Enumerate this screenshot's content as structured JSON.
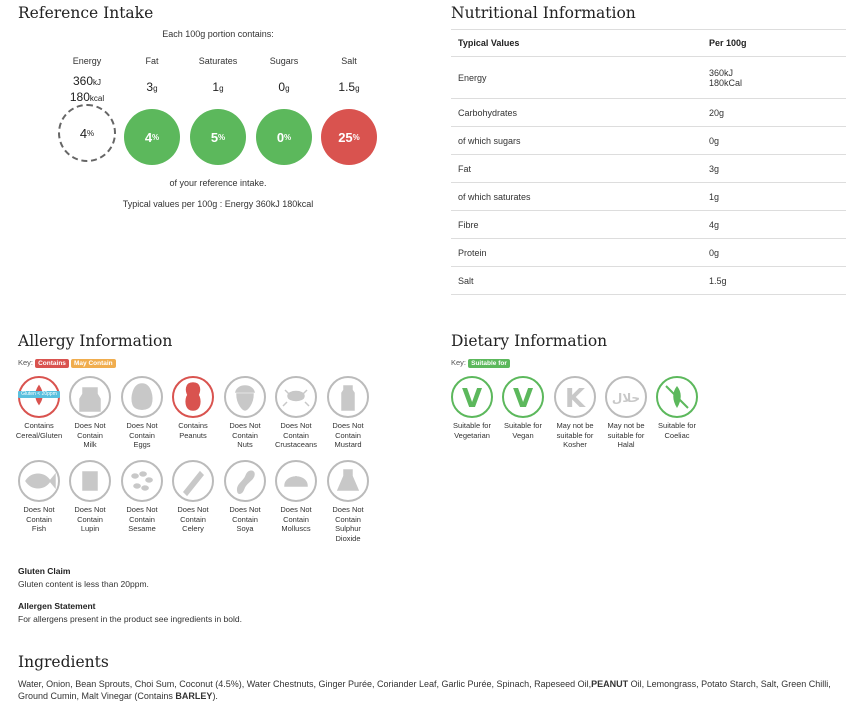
{
  "reference_intake": {
    "title": "Reference Intake",
    "portion_text": "Each 100g portion contains:",
    "columns": [
      {
        "name": "Energy",
        "amount_line1": "360",
        "unit_line1": "kJ",
        "amount_line2": "180",
        "unit_line2": "kcal",
        "percent": "4",
        "percent_unit": "%",
        "color": "#ffffff"
      },
      {
        "name": "Fat",
        "amount_line1": "3",
        "unit_line1": "g",
        "percent": "4",
        "percent_unit": "%",
        "color": "#5cb85c"
      },
      {
        "name": "Saturates",
        "amount_line1": "1",
        "unit_line1": "g",
        "percent": "5",
        "percent_unit": "%",
        "color": "#5cb85c"
      },
      {
        "name": "Sugars",
        "amount_line1": "0",
        "unit_line1": "g",
        "percent": "0",
        "percent_unit": "%",
        "color": "#5cb85c"
      },
      {
        "name": "Salt",
        "amount_line1": "1.5",
        "unit_line1": "g",
        "percent": "25",
        "percent_unit": "%",
        "color": "#d9534f"
      }
    ],
    "footer1": "of your reference intake.",
    "footer2": "Typical values per 100g : Energy 360kJ 180kcal"
  },
  "nutrition": {
    "title": "Nutritional Information",
    "headers": [
      "Typical Values",
      "Per 100g"
    ],
    "rows": [
      {
        "label": "Energy",
        "value": "360kJ",
        "value2": "180kCal"
      },
      {
        "label": "Carbohydrates",
        "value": "20g"
      },
      {
        "label": "of which sugars",
        "value": "0g"
      },
      {
        "label": "Fat",
        "value": "3g"
      },
      {
        "label": "of which saturates",
        "value": "1g"
      },
      {
        "label": "Fibre",
        "value": "4g"
      },
      {
        "label": "Protein",
        "value": "0g"
      },
      {
        "label": "Salt",
        "value": "1.5g"
      }
    ]
  },
  "allergy": {
    "title": "Allergy Information",
    "key_label": "Key:",
    "key_contains": "Contains",
    "key_may_contain": "May Contain",
    "gluten_tag": "Gluten < 20ppm",
    "items": [
      {
        "l1": "Contains",
        "l2": "Cereal/Gluten",
        "icon": "wheat-icon",
        "state": "contains"
      },
      {
        "l1": "Does Not",
        "l2": "Contain",
        "l3": "Milk",
        "icon": "milk-icon",
        "state": "none"
      },
      {
        "l1": "Does Not",
        "l2": "Contain",
        "l3": "Eggs",
        "icon": "egg-icon",
        "state": "none"
      },
      {
        "l1": "Contains",
        "l2": "Peanuts",
        "icon": "peanut-icon",
        "state": "contains"
      },
      {
        "l1": "Does Not",
        "l2": "Contain",
        "l3": "Nuts",
        "icon": "nut-icon",
        "state": "none"
      },
      {
        "l1": "Does Not",
        "l2": "Contain",
        "l3": "Crustaceans",
        "icon": "crab-icon",
        "state": "none"
      },
      {
        "l1": "Does Not",
        "l2": "Contain",
        "l3": "Mustard",
        "icon": "mustard-icon",
        "state": "none"
      },
      {
        "l1": "Does Not",
        "l2": "Contain",
        "l3": "Fish",
        "icon": "fish-icon",
        "state": "none"
      },
      {
        "l1": "Does Not",
        "l2": "Contain",
        "l3": "Lupin",
        "icon": "lupin-icon",
        "state": "none"
      },
      {
        "l1": "Does Not",
        "l2": "Contain",
        "l3": "Sesame",
        "icon": "sesame-icon",
        "state": "none"
      },
      {
        "l1": "Does Not",
        "l2": "Contain",
        "l3": "Celery",
        "icon": "celery-icon",
        "state": "none"
      },
      {
        "l1": "Does Not",
        "l2": "Contain",
        "l3": "Soya",
        "icon": "soya-icon",
        "state": "none"
      },
      {
        "l1": "Does Not",
        "l2": "Contain",
        "l3": "Molluscs",
        "icon": "mollusc-icon",
        "state": "none"
      },
      {
        "l1": "Does Not",
        "l2": "Contain",
        "l3": "Sulphur",
        "l4": "Dioxide",
        "icon": "sulphur-dioxide-icon",
        "state": "none"
      }
    ],
    "gluten_claim_title": "Gluten Claim",
    "gluten_claim_text": "Gluten content is less than 20ppm.",
    "allergen_statement_title": "Allergen Statement",
    "allergen_statement_text": "For allergens present in the product see ingredients in bold."
  },
  "dietary": {
    "title": "Dietary Information",
    "key_label": "Key:",
    "key_suitable": "Suitable for",
    "items": [
      {
        "l1": "Suitable for",
        "l2": "Vegetarian",
        "icon": "vegetarian-icon",
        "glyph": "V",
        "state": "suitable"
      },
      {
        "l1": "Suitable for",
        "l2": "Vegan",
        "icon": "vegan-icon",
        "glyph": "V",
        "state": "suitable"
      },
      {
        "l1": "May not be",
        "l2": "suitable for",
        "l3": "Kosher",
        "icon": "kosher-icon",
        "glyph": "K",
        "state": "none"
      },
      {
        "l1": "May not be",
        "l2": "suitable for",
        "l3": "Halal",
        "icon": "halal-icon",
        "glyph": "حلال",
        "state": "none"
      },
      {
        "l1": "Suitable for",
        "l2": "Coeliac",
        "icon": "coeliac-icon",
        "state": "suitable"
      }
    ]
  },
  "ingredients": {
    "title": "Ingredients",
    "part1": "Water, Onion, Bean Sprouts, Choi Sum, Coconut (4.5%), Water Chestnuts, Ginger Purée, Coriander Leaf, Garlic Purée, Spinach, Rapeseed Oil,",
    "bold1": "PEANUT",
    "part2": " Oil, Lemongrass, Potato Starch, Salt, Green Chilli, Ground Cumin, Malt Vinegar (Contains ",
    "bold2": "BARLEY",
    "part3": ")."
  },
  "colors": {
    "green": "#5cb85c",
    "red": "#d9534f",
    "orange": "#f0ad4e",
    "grey": "#bbbbbb"
  }
}
